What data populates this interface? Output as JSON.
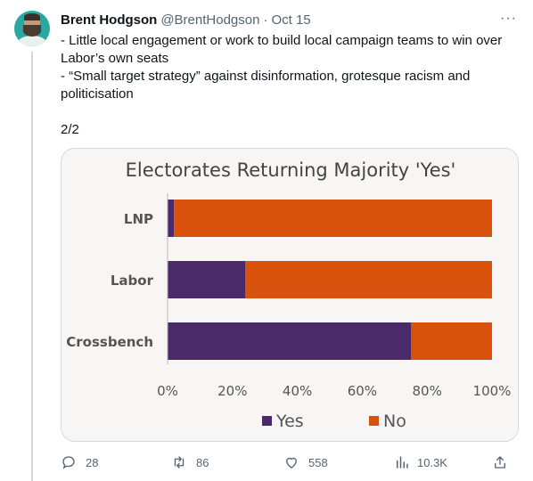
{
  "tweet": {
    "author_name": "Brent Hodgson",
    "author_handle": "@BrentHodgson",
    "separator": "·",
    "date": "Oct 15",
    "more": "···",
    "lines": [
      "- Little local engagement or work to build local campaign teams to win over Labor’s own seats",
      "- “Small target strategy” against disinformation, grotesque racism and politicisation",
      "2/2"
    ]
  },
  "actions": {
    "replies": "28",
    "retweets": "86",
    "likes": "558",
    "views": "10.3K"
  },
  "colors": {
    "yes": "#4b2a6b",
    "no": "#d9520b",
    "card_bg": "#f7f6f4",
    "text_secondary": "#536471"
  },
  "chart_data": {
    "type": "bar",
    "orientation": "horizontal",
    "stacked": true,
    "title": "Electorates Returning Majority 'Yes'",
    "categories": [
      "LNP",
      "Labor",
      "Crossbench"
    ],
    "series": [
      {
        "name": "Yes",
        "values": [
          2,
          24,
          75
        ]
      },
      {
        "name": "No",
        "values": [
          98,
          76,
          25
        ]
      }
    ],
    "xlim": [
      0,
      100
    ],
    "x_ticks": [
      "0%",
      "20%",
      "40%",
      "60%",
      "80%",
      "100%"
    ],
    "legend_position": "bottom",
    "grid": false
  }
}
